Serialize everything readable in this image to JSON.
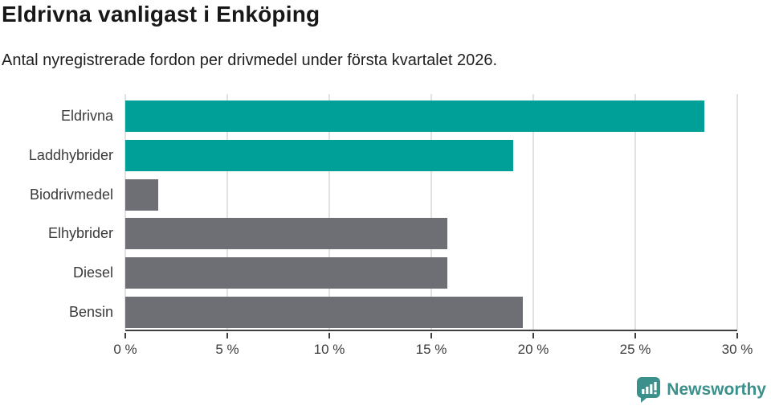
{
  "title": "Eldrivna vanligast i Enköping",
  "subtitle": "Antal nyregistrerade fordon per drivmedel under första kvartalet 2026.",
  "colors": {
    "highlight": "#00a099",
    "neutral": "#6e6e75",
    "gridline": "#e1e1e1",
    "axis": "#3f3f3f",
    "brand": "#3b908c"
  },
  "icons": {
    "brand": "bar-chart-speech-bubble-icon"
  },
  "chart_data": {
    "type": "bar",
    "orientation": "horizontal",
    "title": "Eldrivna vanligast i Enköping",
    "subtitle": "Antal nyregistrerade fordon per drivmedel under första kvartalet 2026.",
    "categories": [
      "Eldrivna",
      "Laddhybrider",
      "Biodrivmedel",
      "Elhybrider",
      "Diesel",
      "Bensin"
    ],
    "values": [
      28.4,
      19.0,
      1.6,
      15.8,
      15.8,
      19.5
    ],
    "bar_colors": [
      "#00a099",
      "#00a099",
      "#6e6e75",
      "#6e6e75",
      "#6e6e75",
      "#6e6e75"
    ],
    "unit": "%",
    "xlim": [
      0,
      30
    ],
    "x_ticks": [
      "0 %",
      "5 %",
      "10 %",
      "15 %",
      "20 %",
      "25 %",
      "30 %"
    ],
    "grid": "vertical",
    "legend": "none"
  },
  "footer": {
    "brand": "Newsworthy"
  }
}
